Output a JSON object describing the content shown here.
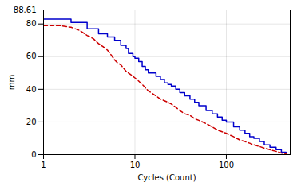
{
  "chart_data": {
    "type": "line",
    "xlabel": "Cycles (Count)",
    "ylabel": "mm",
    "log": "x",
    "grid": true,
    "xlim": [
      1,
      500
    ],
    "xticks": [
      1,
      10,
      100
    ],
    "ylim": [
      0,
      88.61
    ],
    "yticks": [
      0,
      20,
      40,
      60,
      80,
      88.61
    ],
    "x": [
      1,
      1.5,
      2,
      2.5,
      3,
      3.5,
      4,
      4.5,
      5,
      5.5,
      6,
      6.5,
      7,
      7.5,
      8,
      8.5,
      9,
      9.5,
      10,
      11,
      12,
      13,
      14,
      15,
      17,
      19,
      21,
      23,
      25,
      28,
      31,
      35,
      40,
      45,
      50,
      60,
      70,
      80,
      90,
      100,
      120,
      140,
      160,
      180,
      200,
      230,
      260,
      300,
      350,
      400,
      450
    ],
    "series": [
      {
        "color": "#0000cc",
        "type": "step",
        "line_style": "solid",
        "values": [
          83,
          83,
          81,
          81,
          77,
          77,
          74,
          74,
          72,
          72,
          70,
          70,
          67,
          67,
          65,
          62,
          62,
          60,
          59,
          57,
          54,
          52,
          50,
          50,
          48,
          46,
          44,
          43,
          42,
          40,
          38,
          36,
          34,
          32,
          30,
          27,
          25,
          23,
          21,
          20,
          17,
          15,
          13,
          11,
          10,
          8,
          6,
          4.5,
          3,
          1.5,
          0.8
        ]
      },
      {
        "color": "#cc0000",
        "type": "line",
        "line_style": "dashed",
        "values": [
          79,
          79,
          78,
          76,
          73,
          71,
          68,
          66,
          64,
          61,
          58,
          56,
          55,
          53,
          51,
          50,
          49,
          48,
          47,
          45,
          43,
          41,
          39,
          38,
          36,
          34,
          33,
          32,
          31,
          29,
          27,
          25,
          24,
          22,
          21,
          19,
          17,
          15,
          14,
          13,
          11,
          9,
          8,
          7,
          6,
          5,
          4,
          3,
          2,
          1,
          0.5
        ]
      }
    ]
  }
}
